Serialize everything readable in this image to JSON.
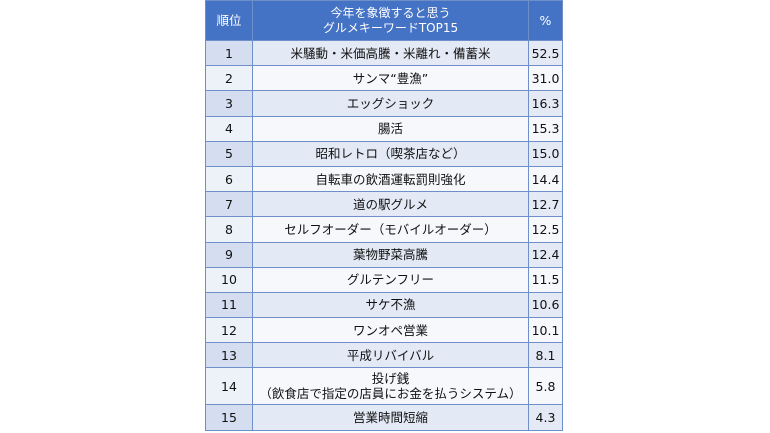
{
  "table": {
    "header": {
      "rank": "順位",
      "word": [
        "今年を象徴すると思う",
        "グルメキーワードTOP15"
      ],
      "pct": "%"
    },
    "rows": [
      [
        "1",
        [
          "米騒動・米価高騰・米離れ・備蓄米"
        ],
        "52.5"
      ],
      [
        "2",
        [
          "サンマ“豊漁”"
        ],
        "31.0"
      ],
      [
        "3",
        [
          "エッグショック"
        ],
        "16.3"
      ],
      [
        "4",
        [
          "腸活"
        ],
        "15.3"
      ],
      [
        "5",
        [
          "昭和レトロ（喫茶店など）"
        ],
        "15.0"
      ],
      [
        "6",
        [
          "自転車の飲酒運転罰則強化"
        ],
        "14.4"
      ],
      [
        "7",
        [
          "道の駅グルメ"
        ],
        "12.7"
      ],
      [
        "8",
        [
          "セルフオーダー（モバイルオーダー）"
        ],
        "12.5"
      ],
      [
        "9",
        [
          "葉物野菜高騰"
        ],
        "12.4"
      ],
      [
        "10",
        [
          "グルテンフリー"
        ],
        "11.5"
      ],
      [
        "11",
        [
          "サケ不漁"
        ],
        "10.6"
      ],
      [
        "12",
        [
          "ワンオペ営業"
        ],
        "10.1"
      ],
      [
        "13",
        [
          "平成リバイバル"
        ],
        "8.1"
      ],
      [
        "14",
        [
          "投げ銭",
          "（飲食店で指定の店員にお金を払うシステム）"
        ],
        "5.8"
      ],
      [
        "15",
        [
          "営業時間短縮"
        ],
        "4.3"
      ]
    ]
  }
}
